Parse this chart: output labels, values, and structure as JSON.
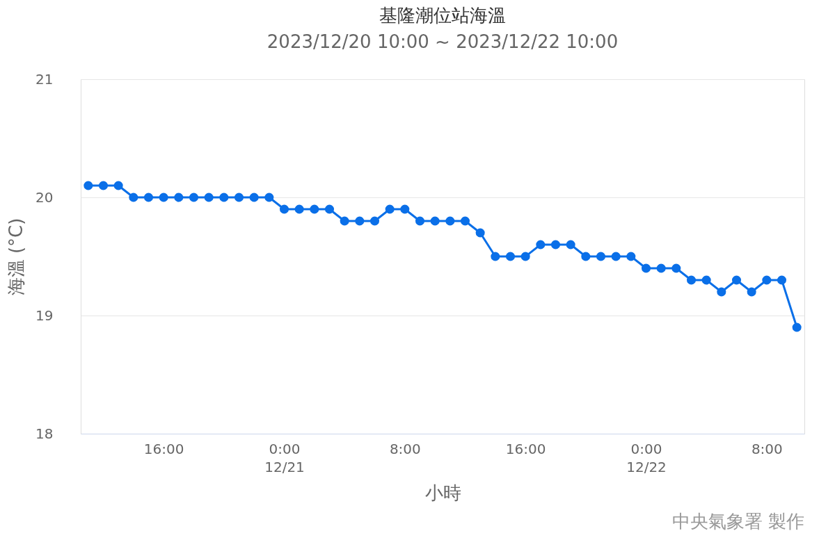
{
  "chart_data": {
    "type": "line",
    "title": "基隆潮位站海溫",
    "subtitle": "2023/12/20 10:00 ~ 2023/12/22 10:00",
    "xlabel": "小時",
    "ylabel": "海溫 (°C)",
    "annotations": [
      "中央氣象署 製作"
    ],
    "x": [
      "2023-12-20T11:00",
      "2023-12-20T12:00",
      "2023-12-20T13:00",
      "2023-12-20T14:00",
      "2023-12-20T15:00",
      "2023-12-20T16:00",
      "2023-12-20T17:00",
      "2023-12-20T18:00",
      "2023-12-20T19:00",
      "2023-12-20T20:00",
      "2023-12-20T21:00",
      "2023-12-20T22:00",
      "2023-12-20T23:00",
      "2023-12-21T00:00",
      "2023-12-21T01:00",
      "2023-12-21T02:00",
      "2023-12-21T03:00",
      "2023-12-21T04:00",
      "2023-12-21T05:00",
      "2023-12-21T06:00",
      "2023-12-21T07:00",
      "2023-12-21T08:00",
      "2023-12-21T09:00",
      "2023-12-21T10:00",
      "2023-12-21T11:00",
      "2023-12-21T12:00",
      "2023-12-21T13:00",
      "2023-12-21T14:00",
      "2023-12-21T15:00",
      "2023-12-21T16:00",
      "2023-12-21T17:00",
      "2023-12-21T18:00",
      "2023-12-21T19:00",
      "2023-12-21T20:00",
      "2023-12-21T21:00",
      "2023-12-21T22:00",
      "2023-12-21T23:00",
      "2023-12-22T00:00",
      "2023-12-22T01:00",
      "2023-12-22T02:00",
      "2023-12-22T03:00",
      "2023-12-22T04:00",
      "2023-12-22T05:00",
      "2023-12-22T06:00",
      "2023-12-22T07:00",
      "2023-12-22T08:00",
      "2023-12-22T09:00",
      "2023-12-22T10:00"
    ],
    "series": [
      {
        "color": "#0a6fe8",
        "values": [
          20.1,
          20.1,
          20.1,
          20.0,
          20.0,
          20.0,
          20.0,
          20.0,
          20.0,
          20.0,
          20.0,
          20.0,
          20.0,
          19.9,
          19.9,
          19.9,
          19.9,
          19.8,
          19.8,
          19.8,
          19.9,
          19.9,
          19.8,
          19.8,
          19.8,
          19.8,
          19.7,
          19.5,
          19.5,
          19.5,
          19.6,
          19.6,
          19.6,
          19.5,
          19.5,
          19.5,
          19.5,
          19.4,
          19.4,
          19.4,
          19.3,
          19.3,
          19.2,
          19.3,
          19.2,
          19.3,
          19.3,
          18.9
        ]
      }
    ],
    "xlim": [
      "2023-12-20T10:30",
      "2023-12-22T10:30"
    ],
    "xticks": [
      {
        "value": "2023-12-20T16:00",
        "label": "16:00"
      },
      {
        "value": "2023-12-21T00:00",
        "label": "0:00\n12/21"
      },
      {
        "value": "2023-12-21T08:00",
        "label": "8:00"
      },
      {
        "value": "2023-12-21T16:00",
        "label": "16:00"
      },
      {
        "value": "2023-12-22T00:00",
        "label": "0:00\n12/22"
      },
      {
        "value": "2023-12-22T08:00",
        "label": "8:00"
      }
    ],
    "ylim": [
      18,
      21
    ],
    "yticks": [
      18,
      19,
      20,
      21
    ],
    "grid": "y",
    "marker": "circle",
    "line_style": "solid"
  }
}
